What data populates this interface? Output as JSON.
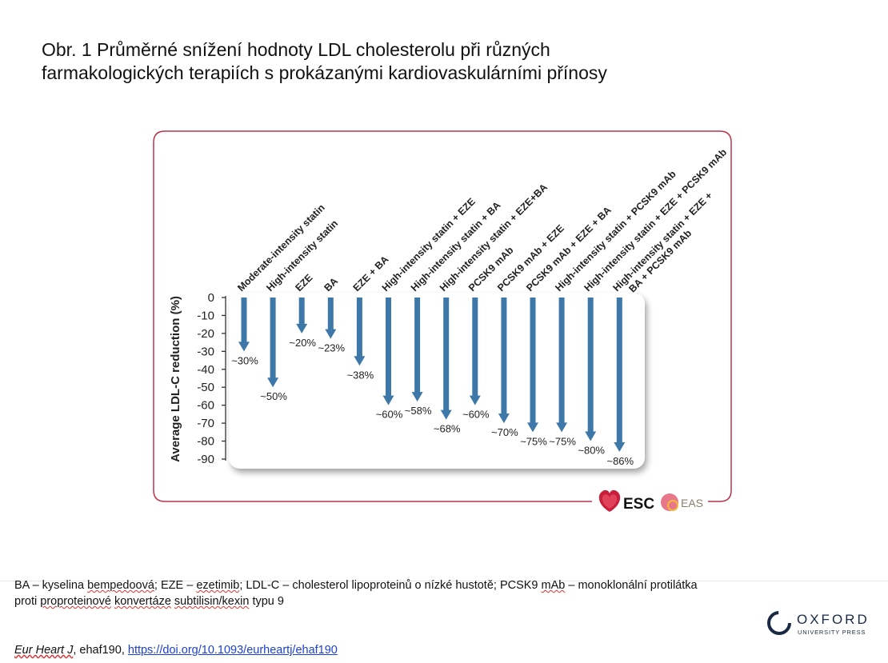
{
  "title": "Obr. 1 Průměrné snížení hodnoty LDL cholesterolu při různých farmakologických terapiích s prokázanými kardiovaskulárními přínosy",
  "chart_data": {
    "type": "bar",
    "orientation": "downward-arrows",
    "ylabel": "Average LDL-C reduction (%)",
    "ylim": [
      -90,
      0
    ],
    "yticks": [
      "0",
      "-10",
      "-20",
      "-30",
      "-40",
      "-50",
      "-60",
      "-70",
      "-80",
      "-90"
    ],
    "categories": [
      [
        "Moderate-intensity statin"
      ],
      [
        "High-intensity statin"
      ],
      [
        "EZE"
      ],
      [
        "BA"
      ],
      [
        "EZE + BA"
      ],
      [
        "High-intensity statin + EZE"
      ],
      [
        "High-intensity statin + BA"
      ],
      [
        "High-intensity statin + EZE+BA"
      ],
      [
        "PCSK9 mAb"
      ],
      [
        "PCSK9 mAb + EZE"
      ],
      [
        "PCSK9 mAb + EZE + BA"
      ],
      [
        "High-intensity statin + PCSK9 mAb"
      ],
      [
        "High-intensity statin + EZE + PCSK9 mAb"
      ],
      [
        "High-intensity statin + EZE +",
        "BA + PCSK9 mAb"
      ]
    ],
    "values": [
      -30,
      -50,
      -20,
      -23,
      -38,
      -60,
      -58,
      -68,
      -60,
      -70,
      -75,
      -75,
      -80,
      -86
    ],
    "data_labels": [
      "~30%",
      "~50%",
      "~20%",
      "~23%",
      "~38%",
      "~60%",
      "~58%",
      "~68%",
      "~60%",
      "~70%",
      "~75%",
      "~75%",
      "~80%",
      "~86%"
    ],
    "colors": {
      "arrow": "#3d78a8",
      "frame": "#b8344c"
    },
    "grid": false
  },
  "logos": {
    "esc": "ESC",
    "eas": "EAS"
  },
  "caption": {
    "parts": [
      "BA – kyselina ",
      "bempedoová",
      "; EZE – ",
      "ezetimib",
      "; LDL-C – cholesterol lipoproteinů o nízké hustotě; PCSK9 ",
      "mAb",
      " – monoklonální protilátka proti ",
      "proproteinové",
      " ",
      "konvertáze",
      " ",
      "subtilisin/kexin",
      " typu 9"
    ]
  },
  "citation": {
    "journal": "Eur Heart J",
    "rest": ", ehaf190, ",
    "link": "https://doi.org/10.1093/eurheartj/ehaf190"
  },
  "publisher": {
    "name": "OXFORD",
    "sub": "UNIVERSITY PRESS"
  }
}
